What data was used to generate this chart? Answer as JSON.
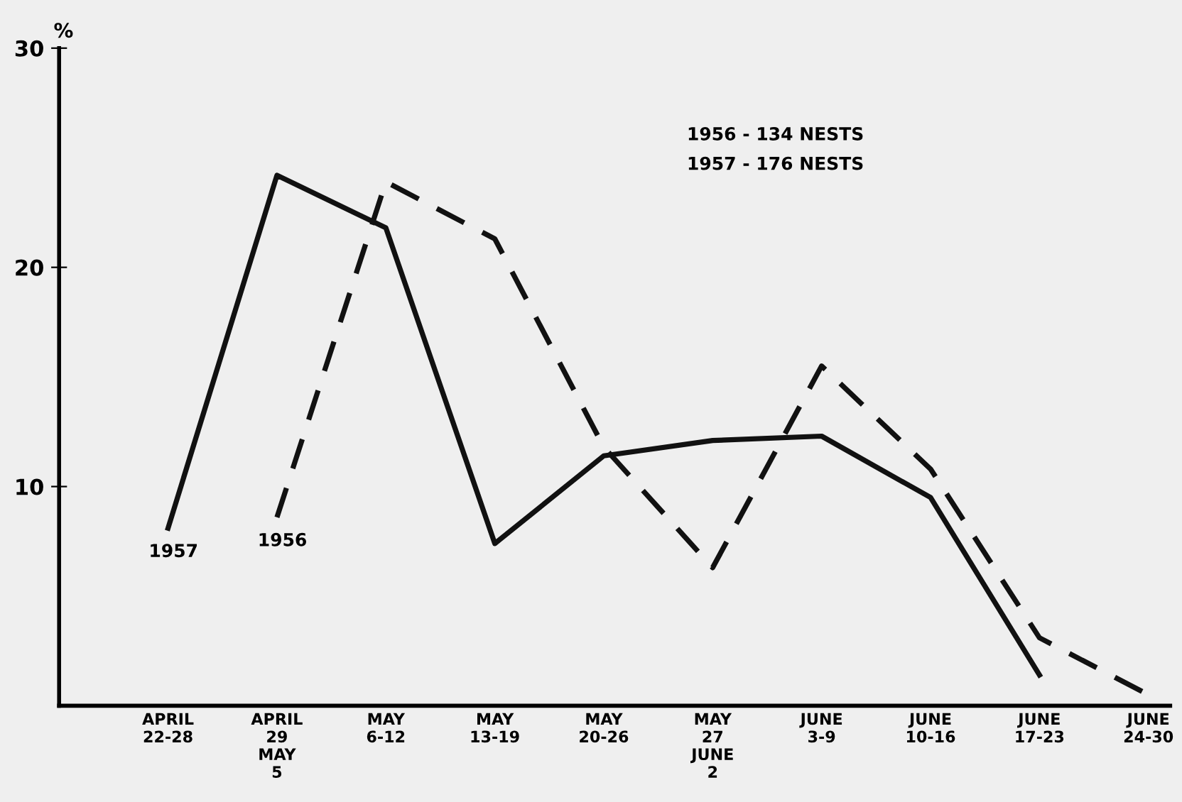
{
  "chart_data": {
    "type": "line",
    "ylabel": "%",
    "categories": [
      "APRIL\n22-28",
      "APRIL\n29\nMAY\n5",
      "MAY\n6-12",
      "MAY\n13-19",
      "MAY\n20-26",
      "MAY\n27\nJUNE\n2",
      "JUNE\n3-9",
      "JUNE\n10-16",
      "JUNE\n17-23",
      "JUNE\n24-30"
    ],
    "series": [
      {
        "name": "1957",
        "color": "#111111",
        "line_style": "solid",
        "values": [
          8.1,
          24.2,
          21.8,
          7.4,
          11.4,
          12.1,
          12.3,
          9.5,
          1.4,
          null
        ]
      },
      {
        "name": "1956",
        "color": "#111111",
        "line_style": "dashed",
        "values": [
          null,
          8.6,
          23.9,
          21.3,
          11.8,
          6.3,
          15.5,
          10.8,
          3.1,
          0.5
        ]
      }
    ],
    "ylim": [
      0,
      30
    ],
    "yticks": [
      10,
      20,
      30
    ],
    "grid": false,
    "legend": false,
    "marker": "none",
    "annotations": [
      "1956 - 134 NESTS",
      "1957 - 176 NESTS"
    ]
  }
}
